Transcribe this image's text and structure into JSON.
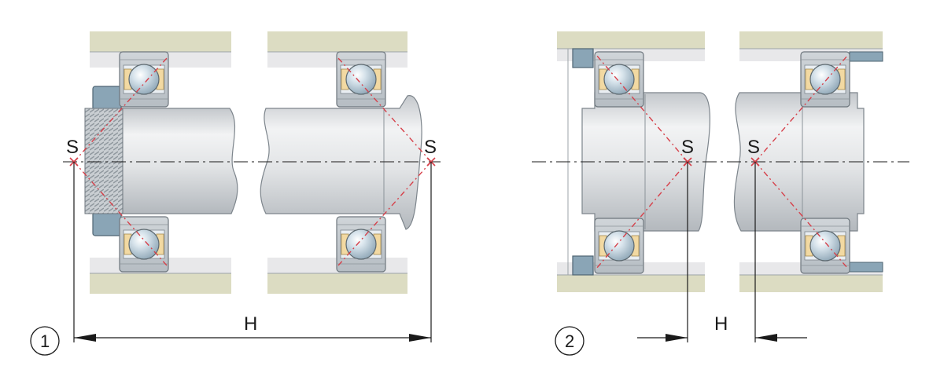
{
  "arrangement_1": {
    "number": "1",
    "pressure_center_label": "S",
    "distance_label": "H"
  },
  "arrangement_2": {
    "number": "2",
    "pressure_center_label": "S",
    "distance_label": "H"
  },
  "colors": {
    "housing": "#dcdcc2",
    "housing_edge": "#c7c7ad",
    "ring": "#c6cbcf",
    "ring_dark": "#a7afb6",
    "ball": "#b8cad6",
    "cage": "#f2d9a2",
    "nut": "#8aa5b6",
    "contact_line": "#d6404a",
    "dimension_line": "#1a1a1a"
  }
}
